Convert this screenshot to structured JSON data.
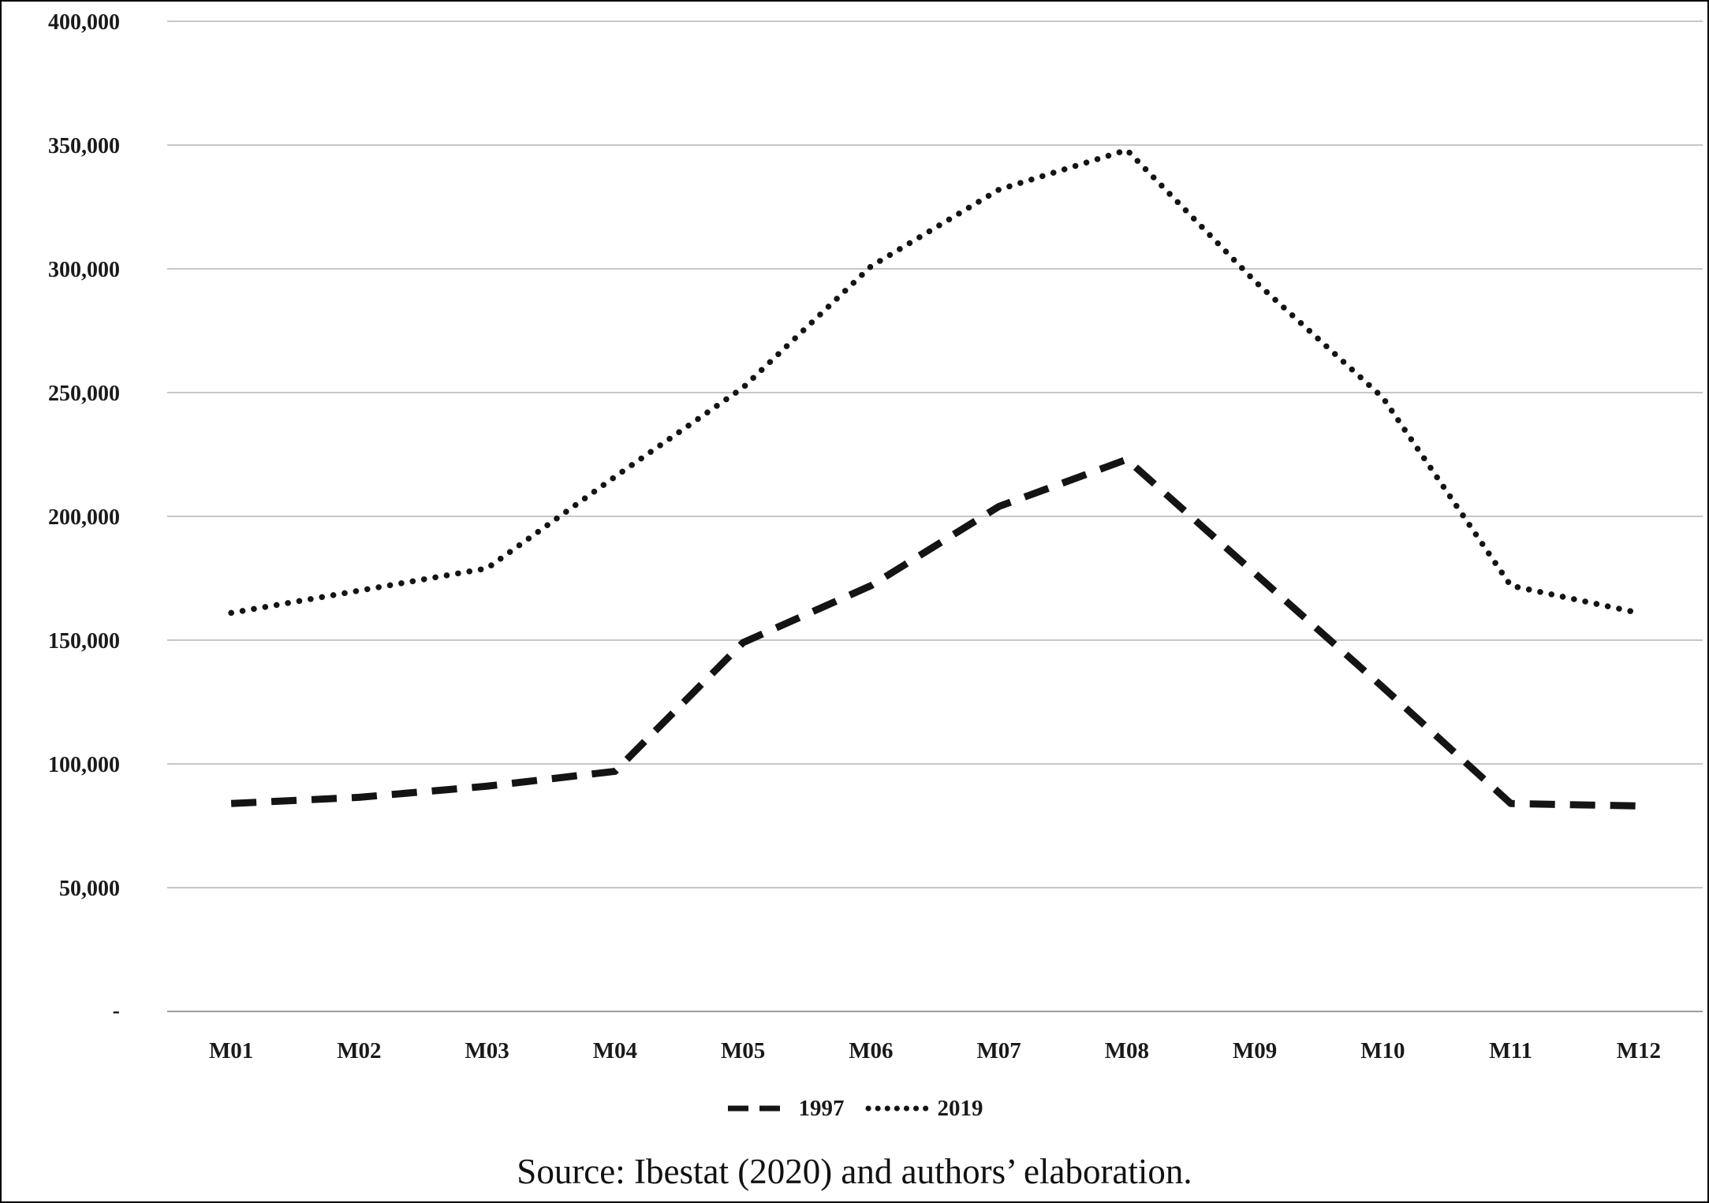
{
  "chart_data": {
    "type": "line",
    "categories": [
      "M01",
      "M02",
      "M03",
      "M04",
      "M05",
      "M06",
      "M07",
      "M08",
      "M09",
      "M10",
      "M11",
      "M12"
    ],
    "series": [
      {
        "name": "1997",
        "style": "dashed",
        "values": [
          84000,
          86500,
          91000,
          97000,
          149000,
          172000,
          204000,
          223000,
          177000,
          131000,
          84000,
          83000
        ]
      },
      {
        "name": "2019",
        "style": "dotted",
        "values": [
          161000,
          170000,
          179000,
          216000,
          252000,
          301000,
          332000,
          348000,
          295000,
          248000,
          172000,
          161000
        ]
      }
    ],
    "title": "",
    "xlabel": "",
    "ylabel": "",
    "ylim": [
      0,
      400000
    ],
    "ytick_step": 50000,
    "yticks": [
      {
        "value": 0,
        "label": "-"
      },
      {
        "value": 50000,
        "label": "50,000"
      },
      {
        "value": 100000,
        "label": "100,000"
      },
      {
        "value": 150000,
        "label": "150,000"
      },
      {
        "value": 200000,
        "label": "200,000"
      },
      {
        "value": 250000,
        "label": "250,000"
      },
      {
        "value": 300000,
        "label": "300,000"
      },
      {
        "value": 350000,
        "label": "350,000"
      },
      {
        "value": 400000,
        "label": "400,000"
      }
    ],
    "grid": true,
    "legend_position": "bottom"
  },
  "legend": {
    "items": [
      {
        "label": "1997"
      },
      {
        "label": "2019"
      }
    ]
  },
  "caption": "Source: Ibestat (2020) and authors’ elaboration.",
  "colors": {
    "line": "#141414",
    "grid": "#c7c7c7",
    "background": "#ffffff"
  }
}
